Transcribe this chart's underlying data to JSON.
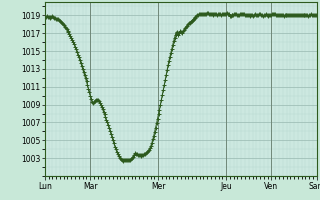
{
  "background_color": "#c8e8d8",
  "plot_bg_color": "#cce8e0",
  "grid_color_major": "#a0c0b8",
  "line_color": "#2d5a1e",
  "marker": "+",
  "marker_size": 2.5,
  "line_width": 0.8,
  "yticks": [
    1003,
    1005,
    1007,
    1009,
    1011,
    1013,
    1015,
    1017,
    1019
  ],
  "ylim": [
    1001.0,
    1020.5
  ],
  "xlim": [
    0,
    288
  ],
  "xtick_positions": [
    0,
    48,
    120,
    192,
    240,
    288
  ],
  "xtick_labels": [
    "Lun",
    "Mar",
    "Mer",
    "Jeu",
    "Ven",
    "Sam"
  ],
  "vline_positions": [
    0,
    48,
    120,
    192,
    240,
    288
  ],
  "data_y": [
    1018.8,
    1018.85,
    1018.9,
    1018.85,
    1018.8,
    1018.75,
    1018.8,
    1018.85,
    1018.9,
    1018.8,
    1018.75,
    1018.7,
    1018.65,
    1018.6,
    1018.55,
    1018.5,
    1018.4,
    1018.3,
    1018.2,
    1018.05,
    1017.9,
    1017.75,
    1017.6,
    1017.45,
    1017.3,
    1017.1,
    1016.9,
    1016.7,
    1016.5,
    1016.25,
    1016.0,
    1015.75,
    1015.5,
    1015.2,
    1014.9,
    1014.6,
    1014.3,
    1014.0,
    1013.7,
    1013.35,
    1013.0,
    1012.65,
    1012.3,
    1011.95,
    1011.6,
    1011.2,
    1010.8,
    1010.4,
    1010.0,
    1009.65,
    1009.3,
    1009.2,
    1009.25,
    1009.4,
    1009.55,
    1009.55,
    1009.5,
    1009.4,
    1009.2,
    1009.0,
    1008.75,
    1008.5,
    1008.2,
    1007.9,
    1007.6,
    1007.3,
    1007.0,
    1006.7,
    1006.4,
    1006.05,
    1005.7,
    1005.35,
    1005.0,
    1004.65,
    1004.3,
    1004.0,
    1003.7,
    1003.45,
    1003.2,
    1003.0,
    1002.85,
    1002.75,
    1002.72,
    1002.75,
    1002.8,
    1002.82,
    1002.8,
    1002.78,
    1002.75,
    1002.78,
    1002.82,
    1002.9,
    1003.0,
    1003.15,
    1003.35,
    1003.55,
    1003.5,
    1003.45,
    1003.4,
    1003.35,
    1003.3,
    1003.28,
    1003.3,
    1003.35,
    1003.4,
    1003.45,
    1003.5,
    1003.55,
    1003.65,
    1003.8,
    1003.95,
    1004.15,
    1004.4,
    1004.7,
    1005.1,
    1005.5,
    1005.95,
    1006.4,
    1006.9,
    1007.4,
    1007.9,
    1008.45,
    1009.0,
    1009.55,
    1010.1,
    1010.65,
    1011.2,
    1011.75,
    1012.3,
    1012.85,
    1013.4,
    1013.9,
    1014.35,
    1014.8,
    1015.25,
    1015.7,
    1016.1,
    1016.5,
    1016.85,
    1017.15,
    1017.0,
    1016.85,
    1017.05,
    1017.25,
    1017.1,
    1017.0,
    1017.2,
    1017.4,
    1017.55,
    1017.7,
    1017.85,
    1018.0,
    1018.1,
    1018.2,
    1018.3,
    1018.4,
    1018.5,
    1018.6,
    1018.7,
    1018.8,
    1018.9,
    1019.0,
    1019.05,
    1019.1,
    1019.15,
    1019.2,
    1019.15,
    1019.1,
    1019.1,
    1019.15,
    1019.2,
    1019.25,
    1019.25,
    1019.2,
    1019.15,
    1019.2,
    1019.15,
    1019.1,
    1019.05,
    1019.1,
    1019.15,
    1019.1,
    1019.05,
    1019.1,
    1019.15,
    1019.1,
    1019.05,
    1019.1,
    1019.15,
    1019.1,
    1019.15,
    1019.2,
    1019.25,
    1019.2,
    1019.1,
    1018.95,
    1018.9,
    1019.0,
    1019.05,
    1019.0,
    1019.1,
    1019.15,
    1019.1,
    1019.05,
    1019.0,
    1019.0,
    1019.1,
    1019.15,
    1019.2,
    1019.2,
    1019.1,
    1019.05,
    1019.0,
    1019.0,
    1019.05,
    1019.0,
    1018.95,
    1019.0,
    1019.05,
    1019.0,
    1018.95,
    1019.0,
    1019.1,
    1019.05,
    1019.0,
    1019.05,
    1019.1,
    1019.1,
    1019.05,
    1019.0,
    1018.95,
    1019.0,
    1019.05,
    1019.1,
    1019.0,
    1018.95,
    1019.0,
    1019.05,
    1019.0,
    1019.0,
    1019.1,
    1019.15,
    1019.2,
    1019.1,
    1019.05,
    1019.0,
    1019.0,
    1019.05,
    1019.0,
    1019.0,
    1019.05,
    1019.0,
    1018.95,
    1019.0,
    1019.0,
    1019.05,
    1019.0,
    1019.0,
    1019.05,
    1019.0,
    1019.0,
    1019.0,
    1019.0,
    1019.0,
    1019.0,
    1019.0,
    1019.0,
    1019.0,
    1019.0,
    1019.0,
    1019.0,
    1019.0,
    1019.0,
    1019.0,
    1019.0,
    1019.0,
    1019.0,
    1019.0,
    1018.95,
    1019.0,
    1019.05,
    1019.1,
    1019.05,
    1019.0,
    1019.0,
    1019.0,
    1019.0,
    1019.0
  ]
}
